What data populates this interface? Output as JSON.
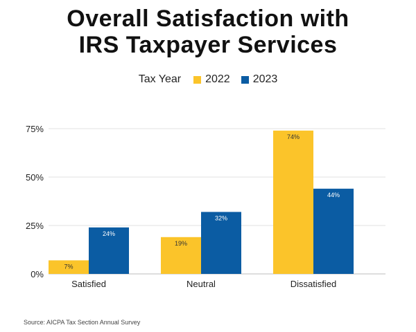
{
  "chart_data": {
    "type": "bar",
    "title_lines": [
      "Overall Satisfaction with",
      "IRS Taxpayer Services"
    ],
    "legend_title": "Tax Year",
    "categories": [
      "Satisfied",
      "Neutral",
      "Dissatisfied"
    ],
    "series": [
      {
        "name": "2022",
        "color": "#FBC42A",
        "values": [
          7,
          19,
          74
        ],
        "labels": [
          "7%",
          "19%",
          "74%"
        ]
      },
      {
        "name": "2023",
        "color": "#0B5CA3",
        "values": [
          24,
          32,
          44
        ],
        "labels": [
          "24%",
          "32%",
          "44%"
        ]
      }
    ],
    "yticks": [
      0,
      25,
      50,
      75
    ],
    "ytick_labels": [
      "0%",
      "25%",
      "50%",
      "75%"
    ],
    "ylim": [
      0,
      75
    ],
    "grid": true,
    "legend_position": "top-center",
    "source": "Source: AICPA Tax Section Annual Survey"
  }
}
